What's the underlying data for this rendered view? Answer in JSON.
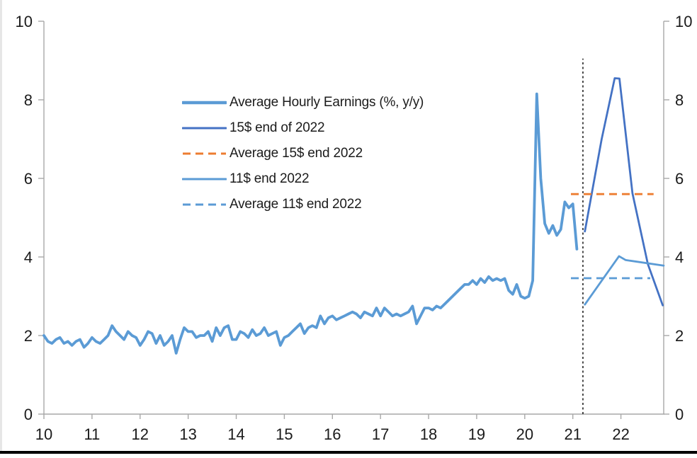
{
  "chart_data": {
    "type": "line",
    "title": "",
    "xlabel": "",
    "ylabel": "",
    "xlim": [
      10,
      22.89
    ],
    "ylim": [
      0,
      10
    ],
    "x_ticks": [
      10,
      11,
      12,
      13,
      14,
      15,
      16,
      17,
      18,
      19,
      20,
      21,
      22
    ],
    "y_ticks": [
      0,
      2,
      4,
      6,
      8,
      10
    ],
    "grid": false,
    "dual_y_axis": true,
    "legend_position": "upper-left-inside",
    "axis_color": "#a8a8a8",
    "text_color": "#1b1b1b",
    "series": [
      {
        "name": "Average Hourly Earnings (%, y/y)",
        "color": "#5B9BD5",
        "style": "solid",
        "width": 3.8,
        "x_start": 10,
        "x_step": 0.0833333,
        "values": [
          2.0,
          1.85,
          1.8,
          1.9,
          1.95,
          1.8,
          1.85,
          1.75,
          1.85,
          1.9,
          1.7,
          1.8,
          1.95,
          1.85,
          1.8,
          1.9,
          2.0,
          2.25,
          2.1,
          2.0,
          1.9,
          2.1,
          2.0,
          1.95,
          1.75,
          1.9,
          2.1,
          2.05,
          1.8,
          2.0,
          1.75,
          1.85,
          2.0,
          1.55,
          1.9,
          2.2,
          2.1,
          2.1,
          1.95,
          2.0,
          2.0,
          2.1,
          1.85,
          2.2,
          2.0,
          2.2,
          2.25,
          1.9,
          1.9,
          2.1,
          2.05,
          1.95,
          2.15,
          2.0,
          2.05,
          2.2,
          2.0,
          2.05,
          2.1,
          1.75,
          1.95,
          2.0,
          2.1,
          2.2,
          2.3,
          2.05,
          2.2,
          2.25,
          2.2,
          2.5,
          2.3,
          2.45,
          2.5,
          2.4,
          2.45,
          2.5,
          2.55,
          2.6,
          2.55,
          2.45,
          2.6,
          2.55,
          2.5,
          2.7,
          2.5,
          2.7,
          2.6,
          2.5,
          2.55,
          2.5,
          2.55,
          2.6,
          2.75,
          2.3,
          2.5,
          2.7,
          2.7,
          2.65,
          2.75,
          2.7,
          2.8,
          2.9,
          3.0,
          3.1,
          3.2,
          3.3,
          3.3,
          3.4,
          3.3,
          3.45,
          3.35,
          3.5,
          3.4,
          3.45,
          3.4,
          3.45,
          3.15,
          3.05,
          3.3,
          3.0,
          2.95,
          3.0,
          3.4,
          8.15,
          6.0,
          4.85,
          4.6,
          4.8,
          4.55,
          4.7,
          5.4,
          5.25,
          5.35,
          4.2
        ]
      },
      {
        "name": "15$ end of 2022",
        "color": "#4472C4",
        "style": "solid",
        "width": 2.8,
        "points": [
          [
            21.25,
            4.65
          ],
          [
            21.6,
            7.0
          ],
          [
            21.87,
            8.55
          ],
          [
            21.97,
            8.54
          ],
          [
            22.24,
            5.62
          ],
          [
            22.56,
            3.82
          ],
          [
            22.87,
            2.77
          ]
        ]
      },
      {
        "name": "Average 15$ end 2022",
        "color": "#ED7D31",
        "style": "dashed",
        "width": 2.8,
        "points": [
          [
            20.96,
            5.6
          ],
          [
            22.68,
            5.6
          ]
        ]
      },
      {
        "name": "11$ end 2022",
        "color": "#5B9BD5",
        "style": "solid",
        "width": 2.8,
        "points": [
          [
            21.25,
            2.79
          ],
          [
            21.96,
            4.02
          ],
          [
            22.1,
            3.92
          ],
          [
            22.89,
            3.78
          ]
        ]
      },
      {
        "name": "Average 11$ end 2022",
        "color": "#5B9BD5",
        "style": "dashed",
        "width": 2.8,
        "points": [
          [
            20.96,
            3.46
          ],
          [
            22.61,
            3.46
          ]
        ]
      }
    ],
    "annotations": [
      {
        "type": "vline",
        "x": 21.21,
        "y_from": 0,
        "y_to": 9.05,
        "style": "dotted",
        "color": "#000000"
      }
    ]
  },
  "legend": {
    "items": [
      "Average Hourly Earnings (%, y/y)",
      "15$ end of 2022",
      "Average 15$ end 2022",
      "11$ end 2022",
      "Average 11$ end 2022"
    ]
  }
}
